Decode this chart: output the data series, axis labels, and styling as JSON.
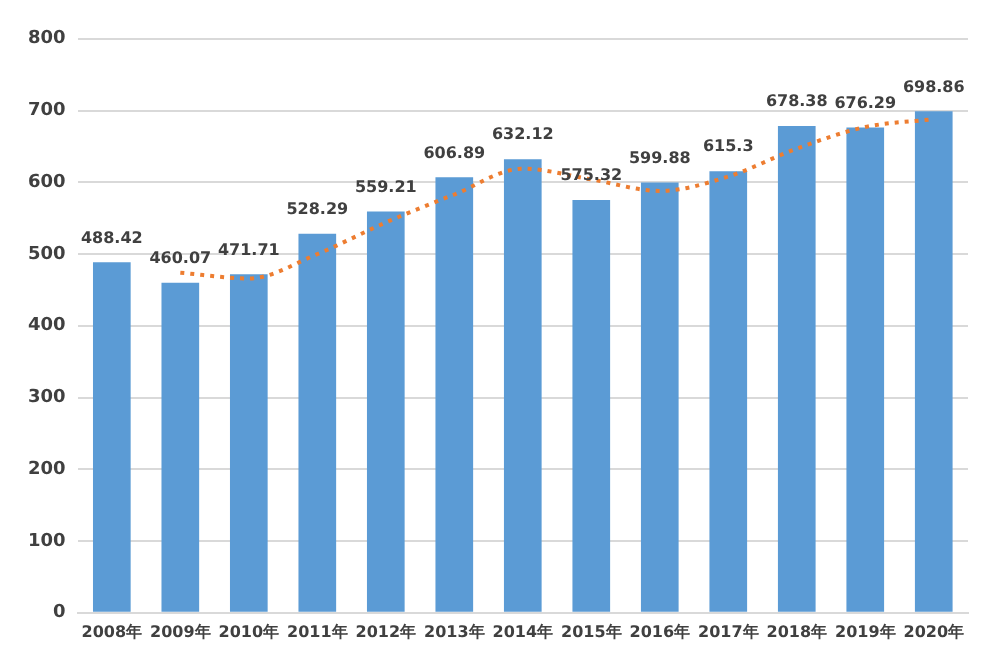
{
  "chart_data": {
    "type": "bar",
    "categories": [
      "2008年",
      "2009年",
      "2010年",
      "2011年",
      "2012年",
      "2013年",
      "2014年",
      "2015年",
      "2016年",
      "2017年",
      "2018年",
      "2019年",
      "2020年"
    ],
    "series": [
      {
        "color": "#5b9bd5",
        "values": [
          488.42,
          460.07,
          471.71,
          528.29,
          559.21,
          606.89,
          632.12,
          575.32,
          599.88,
          615.3,
          678.38,
          676.29,
          698.86
        ],
        "value_labels": [
          "488.42",
          "460.07",
          "471.71",
          "528.29",
          "559.21",
          "606.89",
          "632.12",
          "575.32",
          "599.88",
          "615.3",
          "678.38",
          "676.29",
          "698.86"
        ]
      },
      {
        "type": "line",
        "color": "#ed7d31",
        "line_style": "dotted",
        "marker": "none",
        "values": [
          null,
          474,
          466,
          500,
          544,
          583,
          619,
          604,
          588,
          608,
          647,
          677,
          688
        ]
      }
    ],
    "ylim": [
      0,
      800
    ],
    "yticks": [
      0,
      100,
      200,
      300,
      400,
      500,
      600,
      700,
      800
    ],
    "grid": "y"
  }
}
